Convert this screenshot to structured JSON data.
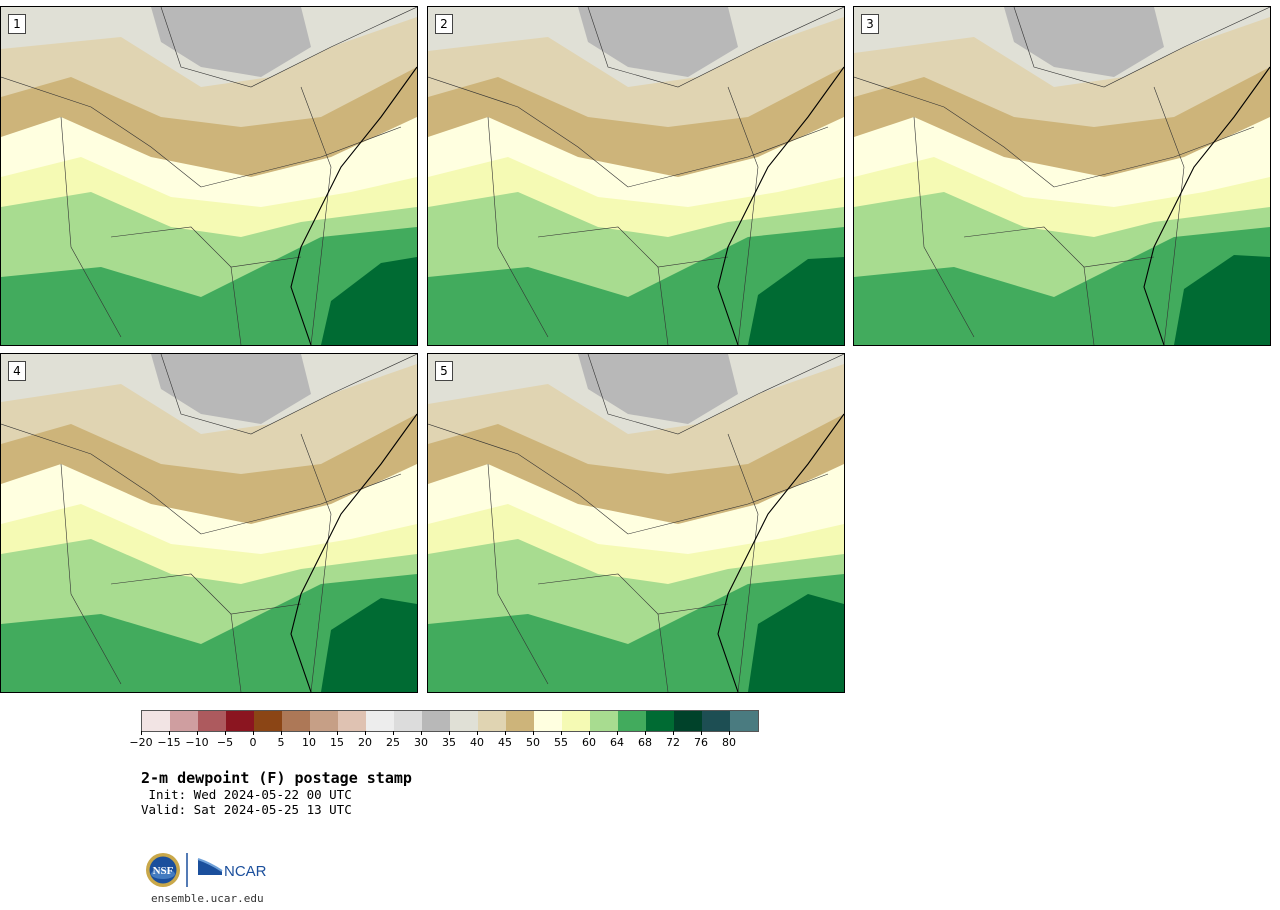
{
  "panels": [
    {
      "label": "1"
    },
    {
      "label": "2"
    },
    {
      "label": "3"
    },
    {
      "label": "4"
    },
    {
      "label": "5"
    }
  ],
  "legend": {
    "colors": [
      "#f2e4e4",
      "#cf9ea0",
      "#ad5a5e",
      "#8b1520",
      "#8b4515",
      "#ad7857",
      "#c69f86",
      "#dfc2b2",
      "#ededed",
      "#dcdcdc",
      "#b8b8b8",
      "#e0e0d6",
      "#e0d4b2",
      "#cdb47a",
      "#ffffe0",
      "#f5fab4",
      "#a8dc90",
      "#42ab5d",
      "#006b33",
      "#00422a",
      "#1d4e53",
      "#4a7b80"
    ],
    "tick_labels": [
      "−20",
      "−15",
      "−10",
      "−5",
      "0",
      "5",
      "10",
      "15",
      "20",
      "25",
      "30",
      "35",
      "40",
      "45",
      "50",
      "55",
      "60",
      "64",
      "68",
      "72",
      "76",
      "80"
    ]
  },
  "text": {
    "title": "2-m dewpoint (F) postage stamp",
    "init": " Init: Wed 2024-05-22 00 UTC",
    "valid": "Valid: Sat 2024-05-25 13 UTC",
    "url": "ensemble.ucar.edu"
  },
  "logos": {
    "nsf": "NSF",
    "ncar": "NCAR"
  }
}
